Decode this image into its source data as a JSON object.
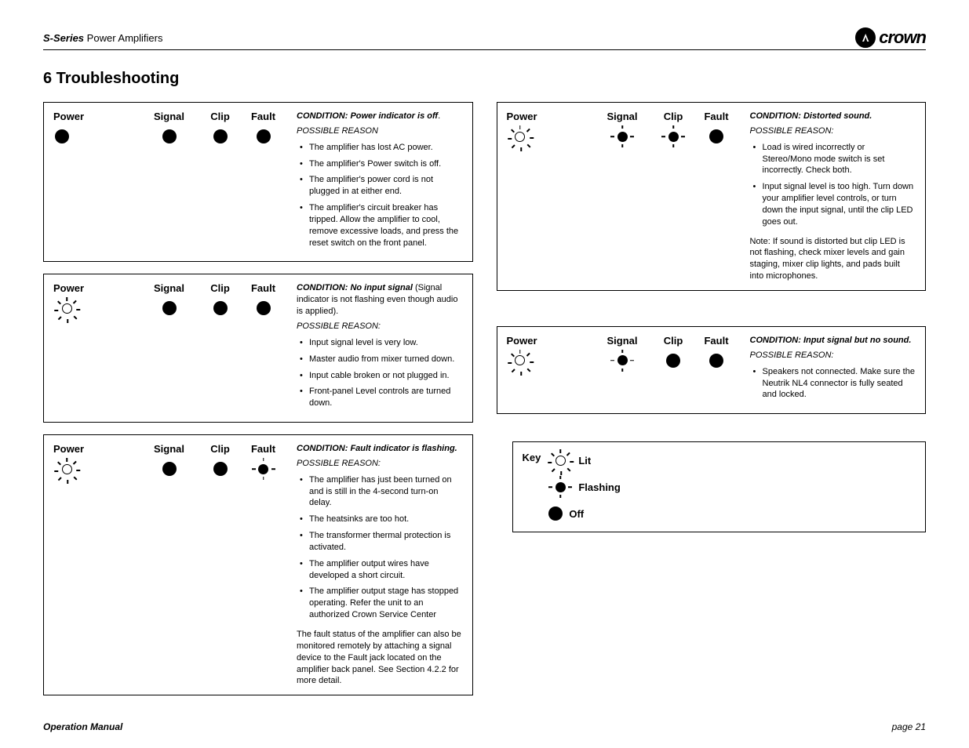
{
  "header": {
    "series": "S-Series",
    "product": "Power Amplifiers",
    "brand": "crown"
  },
  "title": "6 Troubleshooting",
  "labels": {
    "power": "Power",
    "signal": "Signal",
    "clip": "Clip",
    "fault": "Fault"
  },
  "panels": {
    "p1": {
      "leds": {
        "power": "off",
        "signal": "off",
        "clip": "off",
        "fault": "off"
      },
      "condition": "CONDITION: Power indicator is off",
      "condition_suffix": ".",
      "reason_label": "POSSIBLE REASON",
      "bullets": [
        "The amplifier has lost AC power.",
        "The amplifier's Power switch is off.",
        "The amplifier's power cord is not plugged in at either end.",
        "The amplifier's circuit breaker has tripped. Allow the amplifier to cool, remove excessive loads, and press the reset switch on the front panel."
      ]
    },
    "p2": {
      "leds": {
        "power": "lit",
        "signal": "flash",
        "clip": "flash",
        "fault": "off"
      },
      "condition": "CONDITION: Distorted sound.",
      "reason_label": "POSSIBLE REASON:",
      "bullets": [
        "Load is wired incorrectly or Stereo/Mono mode switch is set incorrectly.  Check both.",
        "Input signal level is too high. Turn down your amplifier level controls, or turn down the input signal, until the clip LED goes out."
      ],
      "note": "Note: If sound is distorted but clip LED is not flashing, check mixer levels and gain staging, mixer clip lights, and pads built into microphones."
    },
    "p3": {
      "leds": {
        "power": "lit",
        "signal": "off",
        "clip": "off",
        "fault": "off"
      },
      "condition": "CONDITION: No input signal",
      "condition_extra": " (Signal indicator is not flashing even though audio is applied).",
      "reason_label": "POSSIBLE REASON:",
      "bullets": [
        "Input signal level is very low.",
        "Master audio from mixer turned down.",
        "Input cable broken or not plugged in.",
        "Front-panel Level controls are turned down."
      ]
    },
    "p4": {
      "leds": {
        "power": "lit",
        "signal": "off",
        "clip": "off",
        "fault": "flash"
      },
      "condition": "CONDITION: Fault indicator is flashing.",
      "reason_label": "POSSIBLE REASON:",
      "bullets": [
        "The amplifier has just been turned on and is still in the 4-second turn-on delay.",
        "The heatsinks are too hot.",
        "The transformer thermal protection is activated.",
        "The amplifier output wires have developed a short circuit.",
        "The amplifier output stage has stopped operating.  Refer the unit to an authorized Crown Service Center"
      ],
      "note": "The fault status of the amplifier can also be monitored remotely by attaching a signal device to the Fault jack located on the amplifier back panel. See Section 4.2.2 for more detail."
    },
    "p5": {
      "leds": {
        "power": "lit",
        "signal": "flash",
        "clip": "off",
        "fault": "off"
      },
      "condition": "CONDITION: Input signal but no sound.",
      "reason_label": "POSSIBLE REASON:",
      "bullets": [
        "Speakers not connected. Make sure the Neutrik NL4 connector is fully seated and locked."
      ]
    }
  },
  "key": {
    "label": "Key",
    "lit": "Lit",
    "flashing": "Flashing",
    "off": "Off"
  },
  "footer": {
    "left": "Operation Manual",
    "right": "page 21"
  }
}
